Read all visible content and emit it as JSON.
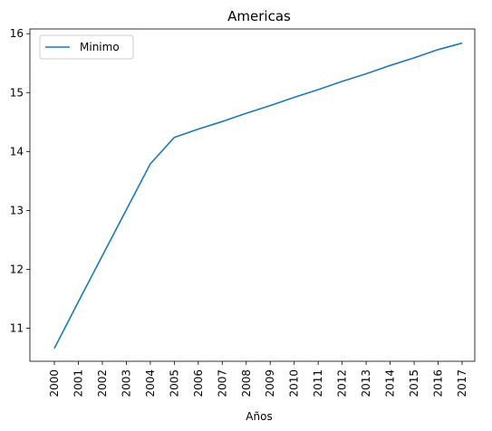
{
  "chart_data": {
    "type": "line",
    "title": "Americas",
    "xlabel": "Años",
    "ylabel": "",
    "categories": [
      "2000",
      "2001",
      "2002",
      "2003",
      "2004",
      "2005",
      "2006",
      "2007",
      "2008",
      "2009",
      "2010",
      "2011",
      "2012",
      "2013",
      "2014",
      "2015",
      "2016",
      "2017"
    ],
    "y_ticks": [
      11,
      12,
      13,
      14,
      15,
      16
    ],
    "ylim": [
      10.44,
      16.08
    ],
    "grid": false,
    "legend_position": "top-left",
    "series": [
      {
        "name": "Minimo",
        "color": "#1f77b4",
        "values": [
          10.66,
          11.45,
          12.23,
          13.01,
          13.79,
          14.24,
          14.38,
          14.51,
          14.65,
          14.78,
          14.92,
          15.05,
          15.19,
          15.32,
          15.46,
          15.59,
          15.73,
          15.84
        ]
      }
    ]
  }
}
